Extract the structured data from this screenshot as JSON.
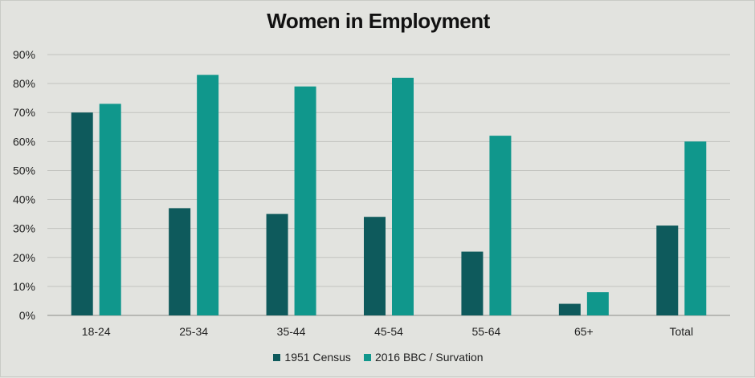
{
  "chart_data": {
    "type": "bar",
    "title": "Women in Employment",
    "xlabel": "",
    "ylabel": "",
    "categories": [
      "18-24",
      "25-34",
      "35-44",
      "45-54",
      "55-64",
      "65+",
      "Total"
    ],
    "series": [
      {
        "name": "1951 Census",
        "color": "#0e5a5c",
        "values": [
          70,
          37,
          35,
          34,
          22,
          4,
          31
        ]
      },
      {
        "name": "2016 BBC / Survation",
        "color": "#10978c",
        "values": [
          73,
          83,
          79,
          82,
          62,
          8,
          60
        ]
      }
    ],
    "ylim": [
      0,
      90
    ],
    "yticks": [
      0,
      10,
      20,
      30,
      40,
      50,
      60,
      70,
      80,
      90
    ],
    "ytick_format": "%",
    "grid": true,
    "legend_position": "bottom"
  }
}
